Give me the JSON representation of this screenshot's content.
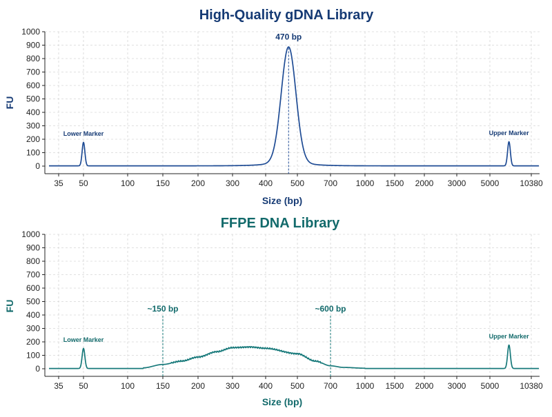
{
  "chart_data": [
    {
      "type": "line",
      "title": "High-Quality gDNA Library",
      "xlabel": "Size (bp)",
      "ylabel": "FU",
      "color": "#1e4b94",
      "title_color": "#153a74",
      "x_scale": "ladder",
      "x_ticks": [
        "35",
        "50",
        "100",
        "150",
        "200",
        "300",
        "400",
        "500",
        "700",
        "1000",
        "1500",
        "2000",
        "3000",
        "5000",
        "10380"
      ],
      "ylim": [
        0,
        1000
      ],
      "y_ticks": [
        0,
        100,
        200,
        300,
        400,
        500,
        600,
        700,
        800,
        900,
        1000
      ],
      "grid": true,
      "series": [
        {
          "peaks": [
            {
              "x": 50,
              "y": 175,
              "label": "Lower Marker"
            },
            {
              "x": 470,
              "y": 885,
              "label": "470 bp"
            },
            {
              "x": 7000,
              "y": 180,
              "label": "Upper Marker"
            }
          ]
        }
      ],
      "annotations": [
        {
          "x": 470,
          "text": "470 bp"
        }
      ]
    },
    {
      "type": "line",
      "title": "FFPE DNA Library",
      "xlabel": "Size (bp)",
      "ylabel": "FU",
      "color": "#17797a",
      "title_color": "#126a6b",
      "x_scale": "ladder",
      "x_ticks": [
        "35",
        "50",
        "100",
        "150",
        "200",
        "300",
        "400",
        "500",
        "700",
        "1000",
        "1500",
        "2000",
        "3000",
        "5000",
        "10380"
      ],
      "ylim": [
        0,
        1000
      ],
      "y_ticks": [
        0,
        100,
        200,
        300,
        400,
        500,
        600,
        700,
        800,
        900,
        1000
      ],
      "grid": true,
      "series": [
        {
          "peaks": [
            {
              "x": 50,
              "y": 150,
              "label": "Lower Marker"
            },
            {
              "x": 7000,
              "y": 175,
              "label": "Upper Marker"
            }
          ],
          "smear": [
            {
              "x": 120,
              "y": 5
            },
            {
              "x": 150,
              "y": 30
            },
            {
              "x": 175,
              "y": 55
            },
            {
              "x": 200,
              "y": 85
            },
            {
              "x": 250,
              "y": 125
            },
            {
              "x": 300,
              "y": 155
            },
            {
              "x": 350,
              "y": 160
            },
            {
              "x": 400,
              "y": 150
            },
            {
              "x": 500,
              "y": 110
            },
            {
              "x": 600,
              "y": 55
            },
            {
              "x": 700,
              "y": 20
            },
            {
              "x": 800,
              "y": 8
            },
            {
              "x": 1000,
              "y": 2
            }
          ]
        }
      ],
      "annotations": [
        {
          "x": 150,
          "text": "~150 bp"
        },
        {
          "x": 700,
          "text": "~600 bp"
        }
      ]
    }
  ]
}
